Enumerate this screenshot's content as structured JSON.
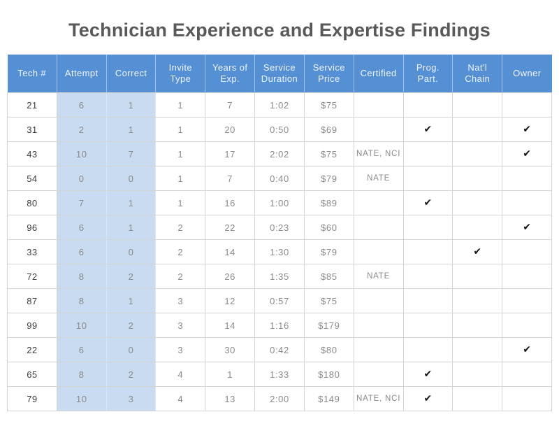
{
  "title": "Technician Experience and Expertise Findings",
  "colors": {
    "header_bg": "#5590D5",
    "highlight_bg": "#C8DBF1",
    "grid_line": "#D4D4D4",
    "title_text": "#595959",
    "body_text": "#8A8A8A",
    "tech_text": "#3D3D3D",
    "check_mark": "#121212"
  },
  "table": {
    "check_glyph": "✔",
    "columns": [
      {
        "key": "tech",
        "label": "Tech #"
      },
      {
        "key": "attempt",
        "label": "Attempt"
      },
      {
        "key": "correct",
        "label": "Correct"
      },
      {
        "key": "invite-type",
        "label": "Invite Type"
      },
      {
        "key": "years-of-exp",
        "label": "Years of Exp."
      },
      {
        "key": "service-duration",
        "label": "Service Duration"
      },
      {
        "key": "service-price",
        "label": "Service Price"
      },
      {
        "key": "certified",
        "label": "Certified"
      },
      {
        "key": "prog-part",
        "label": "Prog. Part."
      },
      {
        "key": "natl-chain",
        "label": "Nat'l Chain"
      },
      {
        "key": "owner",
        "label": "Owner"
      }
    ],
    "rows": [
      [
        "21",
        "6",
        "1",
        "1",
        "7",
        "1:02",
        "$75",
        "",
        "",
        "",
        ""
      ],
      [
        "31",
        "2",
        "1",
        "1",
        "20",
        "0:50",
        "$69",
        "",
        "✔",
        "",
        "✔"
      ],
      [
        "43",
        "10",
        "7",
        "1",
        "17",
        "2:02",
        "$75",
        "NATE, NCI",
        "",
        "",
        "✔"
      ],
      [
        "54",
        "0",
        "0",
        "1",
        "7",
        "0:40",
        "$79",
        "NATE",
        "",
        "",
        ""
      ],
      [
        "80",
        "7",
        "1",
        "1",
        "16",
        "1:00",
        "$89",
        "",
        "✔",
        "",
        ""
      ],
      [
        "96",
        "6",
        "1",
        "2",
        "22",
        "0:23",
        "$60",
        "",
        "",
        "",
        "✔"
      ],
      [
        "33",
        "6",
        "0",
        "2",
        "14",
        "1:30",
        "$79",
        "",
        "",
        "✔",
        ""
      ],
      [
        "72",
        "8",
        "2",
        "2",
        "26",
        "1:35",
        "$85",
        "NATE",
        "",
        "",
        ""
      ],
      [
        "87",
        "8",
        "1",
        "3",
        "12",
        "0:57",
        "$75",
        "",
        "",
        "",
        ""
      ],
      [
        "99",
        "10",
        "2",
        "3",
        "14",
        "1:16",
        "$179",
        "",
        "",
        "",
        ""
      ],
      [
        "22",
        "6",
        "0",
        "3",
        "30",
        "0:42",
        "$80",
        "",
        "",
        "",
        "✔"
      ],
      [
        "65",
        "8",
        "2",
        "4",
        "1",
        "1:33",
        "$180",
        "",
        "✔",
        "",
        ""
      ],
      [
        "79",
        "10",
        "3",
        "4",
        "13",
        "2:00",
        "$149",
        "NATE, NCI",
        "✔",
        "",
        ""
      ]
    ]
  }
}
